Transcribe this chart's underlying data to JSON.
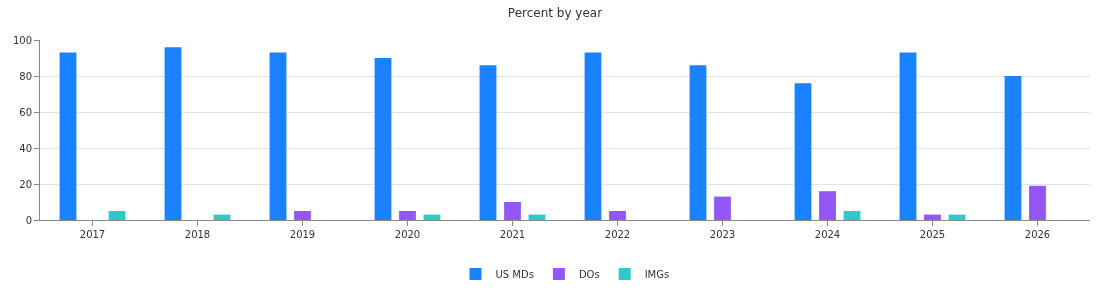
{
  "chart_data": {
    "type": "bar",
    "title": "Percent by year",
    "categories": [
      "2017",
      "2018",
      "2019",
      "2020",
      "2021",
      "2022",
      "2023",
      "2024",
      "2025",
      "2026"
    ],
    "series": [
      {
        "name": "US MDs",
        "color": "#1a82ff",
        "values": [
          93,
          96,
          93,
          90,
          86,
          93,
          86,
          76,
          93,
          80
        ]
      },
      {
        "name": "DOs",
        "color": "#9257f5",
        "values": [
          0,
          0,
          5,
          5,
          10,
          5,
          13,
          16,
          3,
          19
        ]
      },
      {
        "name": "IMGs",
        "color": "#2ccaca",
        "values": [
          5,
          3,
          0,
          3,
          3,
          0,
          0,
          5,
          3,
          0
        ]
      }
    ],
    "ylim": [
      0,
      100
    ],
    "yticks": [
      0,
      20,
      40,
      60,
      80,
      100
    ],
    "grid": "y",
    "legend": "bottom"
  }
}
